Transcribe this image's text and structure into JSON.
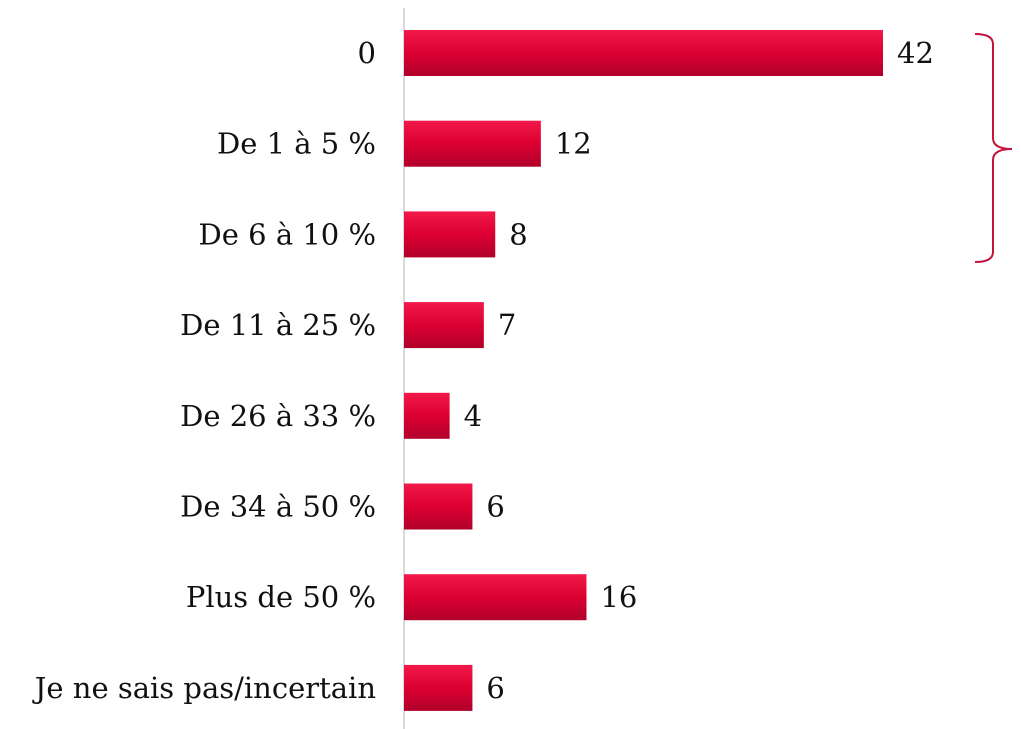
{
  "chart_data": {
    "type": "hbar",
    "categories": [
      "0",
      "De 1 à 5 %",
      "De 6 à 10 %",
      "De 11 à 25 %",
      "De 26 à 33 %",
      "De 34 à 50 %",
      "Plus de 50 %",
      "Je ne sais pas/incertain"
    ],
    "values": [
      42,
      12,
      8,
      7,
      4,
      6,
      16,
      6
    ],
    "color": "#d8002f"
  }
}
